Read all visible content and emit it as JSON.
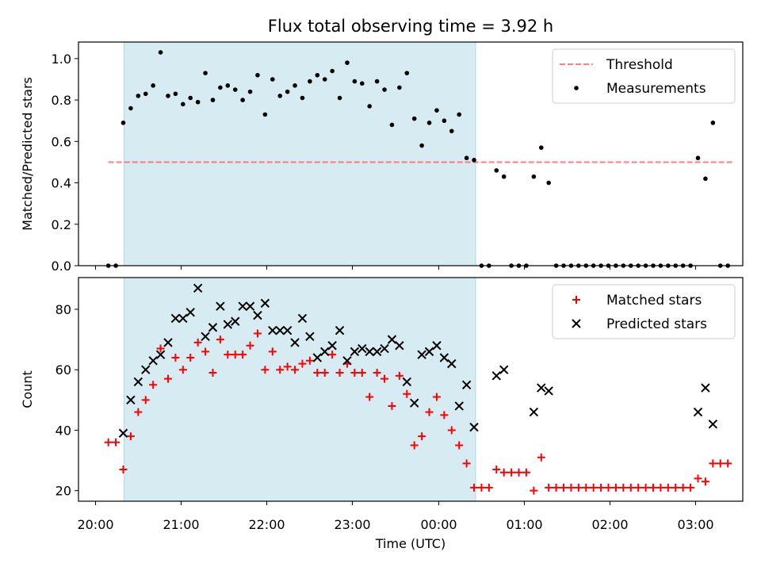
{
  "figure": {
    "title": "Flux total observing time = 3.92 h",
    "xlabel": "Time (UTC)",
    "x_ticks": [
      "20:00",
      "21:00",
      "22:00",
      "23:00",
      "00:00",
      "01:00",
      "02:00",
      "03:00"
    ]
  },
  "colors": {
    "shade": "#add8e6",
    "threshold": "#ff6666",
    "measurement": "#000000",
    "matched": "#ff0000",
    "predicted": "#000000"
  },
  "chart_data": [
    {
      "type": "scatter",
      "ylabel": "Matched/Predicted stars",
      "xlim": [
        -10,
        435
      ],
      "ylim": [
        0,
        1.08
      ],
      "y_ticks": [
        "0.0",
        "0.2",
        "0.4",
        "0.6",
        "0.8",
        "1.0"
      ],
      "shaded_range": [
        20.5,
        256
      ],
      "legend": {
        "position": "upper right",
        "entries": [
          "Threshold",
          "Measurements"
        ]
      },
      "threshold": {
        "name": "Threshold",
        "y": 0.5,
        "x_range": [
          10,
          428
        ]
      },
      "series": [
        {
          "name": "Measurements",
          "points": [
            [
              10,
              0
            ],
            [
              15,
              0
            ],
            [
              20,
              0.69
            ],
            [
              25,
              0.76
            ],
            [
              30,
              0.82
            ],
            [
              35,
              0.83
            ],
            [
              40,
              0.87
            ],
            [
              45,
              1.03
            ],
            [
              50,
              0.82
            ],
            [
              55,
              0.83
            ],
            [
              60,
              0.78
            ],
            [
              65,
              0.81
            ],
            [
              70,
              0.79
            ],
            [
              75,
              0.93
            ],
            [
              80,
              0.8
            ],
            [
              85,
              0.86
            ],
            [
              90,
              0.87
            ],
            [
              95,
              0.85
            ],
            [
              100,
              0.8
            ],
            [
              105,
              0.84
            ],
            [
              110,
              0.92
            ],
            [
              115,
              0.73
            ],
            [
              120,
              0.9
            ],
            [
              125,
              0.82
            ],
            [
              130,
              0.84
            ],
            [
              135,
              0.87
            ],
            [
              140,
              0.81
            ],
            [
              145,
              0.89
            ],
            [
              150,
              0.92
            ],
            [
              155,
              0.9
            ],
            [
              160,
              0.94
            ],
            [
              165,
              0.81
            ],
            [
              170,
              0.98
            ],
            [
              175,
              0.89
            ],
            [
              180,
              0.88
            ],
            [
              185,
              0.77
            ],
            [
              190,
              0.89
            ],
            [
              195,
              0.85
            ],
            [
              200,
              0.68
            ],
            [
              205,
              0.86
            ],
            [
              210,
              0.93
            ],
            [
              215,
              0.71
            ],
            [
              220,
              0.58
            ],
            [
              225,
              0.69
            ],
            [
              230,
              0.75
            ],
            [
              235,
              0.7
            ],
            [
              240,
              0.65
            ],
            [
              245,
              0.73
            ],
            [
              250,
              0.52
            ],
            [
              255,
              0.51
            ],
            [
              260,
              0
            ],
            [
              265,
              0
            ],
            [
              270,
              0.46
            ],
            [
              275,
              0.43
            ],
            [
              280,
              0
            ],
            [
              285,
              0
            ],
            [
              290,
              0
            ],
            [
              295,
              0.43
            ],
            [
              300,
              0.57
            ],
            [
              305,
              0.4
            ],
            [
              310,
              0
            ],
            [
              315,
              0
            ],
            [
              320,
              0
            ],
            [
              325,
              0
            ],
            [
              330,
              0
            ],
            [
              335,
              0
            ],
            [
              340,
              0
            ],
            [
              345,
              0
            ],
            [
              350,
              0
            ],
            [
              355,
              0
            ],
            [
              360,
              0
            ],
            [
              365,
              0
            ],
            [
              370,
              0
            ],
            [
              375,
              0
            ],
            [
              380,
              0
            ],
            [
              385,
              0
            ],
            [
              390,
              0
            ],
            [
              395,
              0
            ],
            [
              400,
              0
            ],
            [
              405,
              0.52
            ],
            [
              410,
              0.42
            ],
            [
              415,
              0.69
            ],
            [
              420,
              0
            ],
            [
              425,
              0
            ]
          ]
        }
      ]
    },
    {
      "type": "scatter",
      "ylabel": "Count",
      "xlim": [
        -10,
        435
      ],
      "ylim": [
        16.5,
        90.5
      ],
      "y_ticks": [
        "20",
        "40",
        "60",
        "80"
      ],
      "shaded_range": [
        20.5,
        256
      ],
      "legend": {
        "position": "upper right",
        "entries": [
          "Matched stars",
          "Predicted stars"
        ]
      },
      "series": [
        {
          "name": "Matched stars",
          "marker": "plus",
          "points": [
            [
              10,
              36
            ],
            [
              15,
              36
            ],
            [
              20,
              27
            ],
            [
              25,
              38
            ],
            [
              30,
              46
            ],
            [
              35,
              50
            ],
            [
              40,
              55
            ],
            [
              45,
              67
            ],
            [
              50,
              57
            ],
            [
              55,
              64
            ],
            [
              60,
              60
            ],
            [
              65,
              64
            ],
            [
              70,
              69
            ],
            [
              75,
              66
            ],
            [
              80,
              59
            ],
            [
              85,
              70
            ],
            [
              90,
              65
            ],
            [
              95,
              65
            ],
            [
              100,
              65
            ],
            [
              105,
              68
            ],
            [
              110,
              72
            ],
            [
              115,
              60
            ],
            [
              120,
              66
            ],
            [
              125,
              60
            ],
            [
              130,
              61
            ],
            [
              135,
              60
            ],
            [
              140,
              62
            ],
            [
              145,
              63
            ],
            [
              150,
              59
            ],
            [
              155,
              59
            ],
            [
              160,
              65
            ],
            [
              165,
              59
            ],
            [
              170,
              62
            ],
            [
              175,
              59
            ],
            [
              180,
              59
            ],
            [
              185,
              51
            ],
            [
              190,
              59
            ],
            [
              195,
              57
            ],
            [
              200,
              48
            ],
            [
              205,
              58
            ],
            [
              210,
              52
            ],
            [
              215,
              35
            ],
            [
              220,
              38
            ],
            [
              225,
              46
            ],
            [
              230,
              51
            ],
            [
              235,
              45
            ],
            [
              240,
              40
            ],
            [
              245,
              35
            ],
            [
              250,
              29
            ],
            [
              255,
              21
            ],
            [
              260,
              21
            ],
            [
              265,
              21
            ],
            [
              270,
              27
            ],
            [
              275,
              26
            ],
            [
              280,
              26
            ],
            [
              285,
              26
            ],
            [
              290,
              26
            ],
            [
              295,
              20
            ],
            [
              300,
              31
            ],
            [
              305,
              21
            ],
            [
              310,
              21
            ],
            [
              315,
              21
            ],
            [
              320,
              21
            ],
            [
              325,
              21
            ],
            [
              330,
              21
            ],
            [
              335,
              21
            ],
            [
              340,
              21
            ],
            [
              345,
              21
            ],
            [
              350,
              21
            ],
            [
              355,
              21
            ],
            [
              360,
              21
            ],
            [
              365,
              21
            ],
            [
              370,
              21
            ],
            [
              375,
              21
            ],
            [
              380,
              21
            ],
            [
              385,
              21
            ],
            [
              390,
              21
            ],
            [
              395,
              21
            ],
            [
              400,
              21
            ],
            [
              405,
              24
            ],
            [
              410,
              23
            ],
            [
              415,
              29
            ],
            [
              420,
              29
            ],
            [
              425,
              29
            ]
          ]
        },
        {
          "name": "Predicted stars",
          "marker": "x",
          "points": [
            [
              20,
              39
            ],
            [
              25,
              50
            ],
            [
              30,
              56
            ],
            [
              35,
              60
            ],
            [
              40,
              63
            ],
            [
              45,
              65
            ],
            [
              50,
              69
            ],
            [
              55,
              77
            ],
            [
              60,
              77
            ],
            [
              65,
              79
            ],
            [
              70,
              87
            ],
            [
              75,
              71
            ],
            [
              80,
              74
            ],
            [
              85,
              81
            ],
            [
              90,
              75
            ],
            [
              95,
              76
            ],
            [
              100,
              81
            ],
            [
              105,
              81
            ],
            [
              110,
              78
            ],
            [
              115,
              82
            ],
            [
              120,
              73
            ],
            [
              125,
              73
            ],
            [
              130,
              73
            ],
            [
              135,
              69
            ],
            [
              140,
              77
            ],
            [
              145,
              71
            ],
            [
              150,
              64
            ],
            [
              155,
              66
            ],
            [
              160,
              68
            ],
            [
              165,
              73
            ],
            [
              170,
              63
            ],
            [
              175,
              66
            ],
            [
              180,
              67
            ],
            [
              185,
              66
            ],
            [
              190,
              66
            ],
            [
              195,
              67
            ],
            [
              200,
              70
            ],
            [
              205,
              68
            ],
            [
              210,
              56
            ],
            [
              215,
              49
            ],
            [
              220,
              65
            ],
            [
              225,
              66
            ],
            [
              230,
              68
            ],
            [
              235,
              64
            ],
            [
              240,
              62
            ],
            [
              245,
              48
            ],
            [
              250,
              55
            ],
            [
              255,
              41
            ],
            [
              270,
              58
            ],
            [
              275,
              60
            ],
            [
              295,
              46
            ],
            [
              300,
              54
            ],
            [
              305,
              53
            ],
            [
              405,
              46
            ],
            [
              410,
              54
            ],
            [
              415,
              42
            ]
          ]
        }
      ]
    }
  ]
}
